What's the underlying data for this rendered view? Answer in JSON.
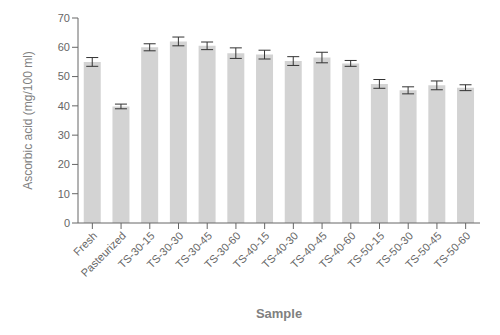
{
  "chart_data": {
    "type": "bar",
    "categories": [
      "Fresh",
      "Pasteurized",
      "TS-30-15",
      "TS-30-30",
      "TS-30-45",
      "TS-30-60",
      "TS-40-15",
      "TS-40-30",
      "TS-40-45",
      "TS-40-60",
      "TS-50-15",
      "TS-50-30",
      "TS-50-45",
      "TS-50-60"
    ],
    "values": [
      55.0,
      39.8,
      60.0,
      62.0,
      60.5,
      58.0,
      57.5,
      55.3,
      56.5,
      54.5,
      47.5,
      45.3,
      47.0,
      46.2
    ],
    "errors": [
      1.5,
      0.8,
      1.2,
      1.5,
      1.3,
      1.8,
      1.5,
      1.5,
      1.8,
      1.0,
      1.5,
      1.2,
      1.5,
      1.0
    ],
    "color": "#d3d3d3",
    "xlabel": "Sample",
    "ylabel": "Ascorbic acid (mg/100 ml)",
    "ylim": [
      0,
      70
    ],
    "yticks": [
      0,
      10,
      20,
      30,
      40,
      50,
      60,
      70
    ],
    "grid": false
  }
}
